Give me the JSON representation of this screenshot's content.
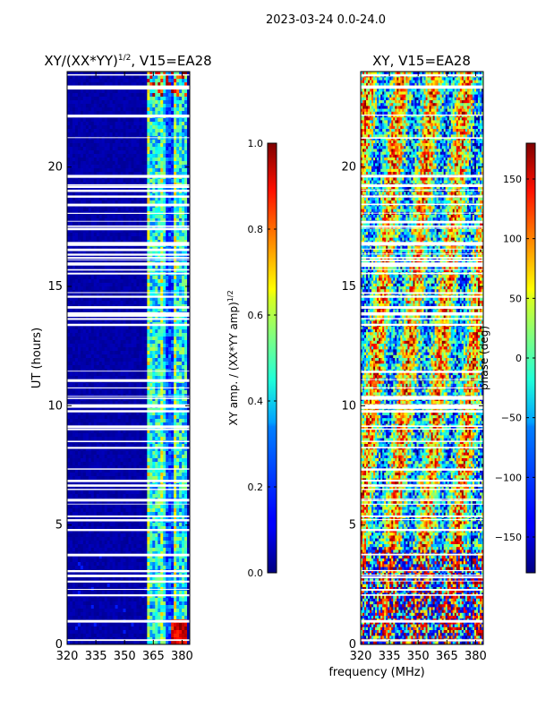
{
  "suptitle": "2023-03-24 0.0-24.0",
  "shared_xlabel": "frequency (MHz)",
  "chart_data": [
    {
      "type": "heatmap",
      "title": "XY/(XX*YY)",
      "title_sup": "1/2",
      "title_suffix": ", V15=EA28",
      "xlabel": "",
      "ylabel": "UT (hours)",
      "xlim": [
        320,
        384
      ],
      "ylim": [
        0,
        24
      ],
      "xticks": [
        320,
        335,
        350,
        365,
        380
      ],
      "yticks": [
        0,
        5,
        10,
        15,
        20
      ],
      "colorbar": {
        "label": "XY amp. / (XX*YY amp)",
        "label_sup": "1/2",
        "range": [
          0.0,
          1.0
        ],
        "ticks": [
          0.0,
          0.2,
          0.4,
          0.6,
          0.8,
          1.0
        ],
        "tick_labels": [
          "0.0",
          "0.2",
          "0.4",
          "0.6",
          "0.8",
          "1.0"
        ]
      },
      "colormap": "jet",
      "description_values": {
        "background_level": 0.02,
        "band_365_380_level": 0.35,
        "hot_patch_level": 0.9
      }
    },
    {
      "type": "heatmap",
      "title": "XY",
      "title_suffix": ", V15=EA28",
      "xlabel": "",
      "ylabel": "",
      "xlim": [
        320,
        384
      ],
      "ylim": [
        0,
        24
      ],
      "xticks": [
        320,
        335,
        350,
        365,
        380
      ],
      "yticks": [
        0,
        5,
        10,
        15,
        20
      ],
      "colorbar": {
        "label": "phase (deg)",
        "range": [
          -180,
          180
        ],
        "ticks": [
          150,
          100,
          50,
          0,
          -50,
          -100,
          -150
        ],
        "tick_labels": [
          "150",
          "100",
          "50",
          "0",
          "−50",
          "−100",
          "−150"
        ]
      },
      "colormap": "jet"
    }
  ]
}
